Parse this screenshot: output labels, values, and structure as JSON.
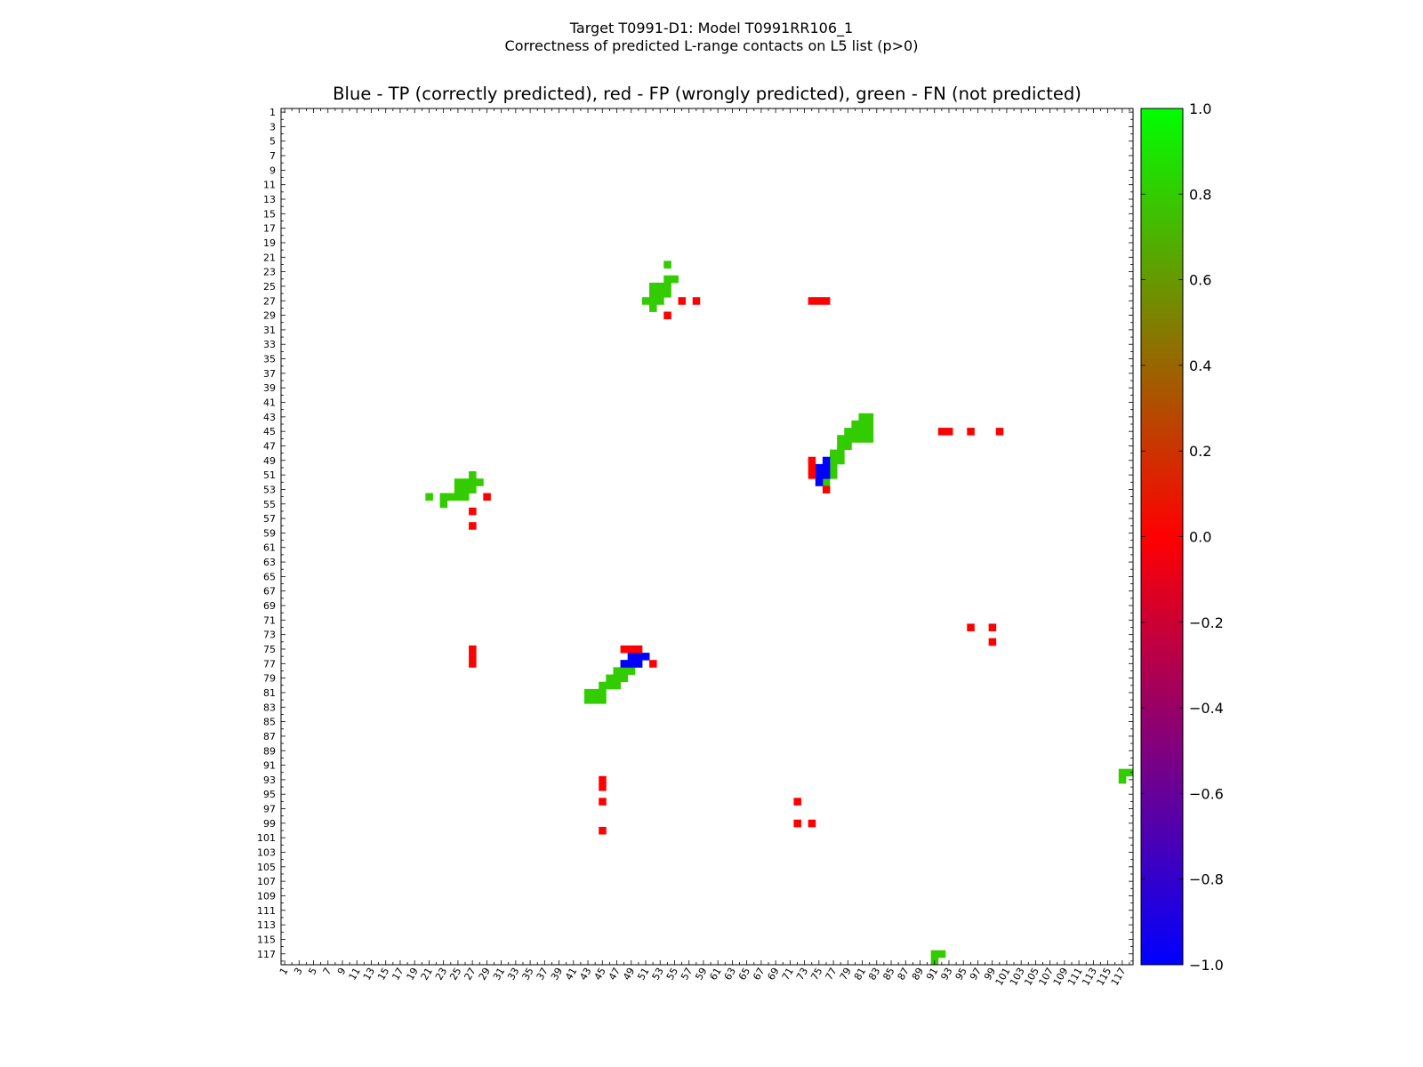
{
  "figure": {
    "title_line1": "Target T0991-D1: Model T0991RR106_1",
    "title_line2": "Correctness of predicted L-range contacts on L5 list (p>0)"
  },
  "chart_data": {
    "type": "heatmap",
    "title": "Blue - TP (correctly predicted), red - FP (wrongly predicted), green - FN (not predicted)",
    "xlabel": "",
    "ylabel": "",
    "xlim": [
      1,
      118
    ],
    "ylim": [
      1,
      118
    ],
    "x_tick_labels": [
      "1",
      "3",
      "5",
      "7",
      "9",
      "11",
      "13",
      "15",
      "17",
      "19",
      "21",
      "23",
      "25",
      "27",
      "29",
      "31",
      "33",
      "35",
      "37",
      "39",
      "41",
      "43",
      "45",
      "47",
      "49",
      "51",
      "53",
      "55",
      "57",
      "59",
      "61",
      "63",
      "65",
      "67",
      "69",
      "71",
      "73",
      "75",
      "77",
      "79",
      "81",
      "83",
      "85",
      "87",
      "89",
      "91",
      "93",
      "95",
      "97",
      "99",
      "101",
      "103",
      "105",
      "107",
      "109",
      "111",
      "113",
      "115",
      "117"
    ],
    "y_tick_labels": [
      "1",
      "3",
      "5",
      "7",
      "9",
      "11",
      "13",
      "15",
      "17",
      "19",
      "21",
      "23",
      "25",
      "27",
      "29",
      "31",
      "33",
      "35",
      "37",
      "39",
      "41",
      "43",
      "45",
      "47",
      "49",
      "51",
      "53",
      "55",
      "57",
      "59",
      "61",
      "63",
      "65",
      "67",
      "69",
      "71",
      "73",
      "75",
      "77",
      "79",
      "81",
      "83",
      "85",
      "87",
      "89",
      "91",
      "93",
      "95",
      "97",
      "99",
      "101",
      "103",
      "105",
      "107",
      "109",
      "111",
      "113",
      "115",
      "117"
    ],
    "colors": {
      "tp": "#0000ff",
      "fp": "#ff0000",
      "fn": "#33cc00"
    },
    "colorbar": {
      "min": -1.0,
      "max": 1.0,
      "tick_labels": [
        "1.0",
        "0.8",
        "0.6",
        "0.4",
        "0.2",
        "0.0",
        "−0.2",
        "−0.4",
        "−0.6",
        "−0.8",
        "−1.0"
      ],
      "stops": [
        "#0000ff",
        "#ff0000",
        "#00ff00"
      ]
    },
    "cells": {
      "fn": [
        [
          54,
          22
        ],
        [
          54,
          24
        ],
        [
          55,
          24
        ],
        [
          52,
          25
        ],
        [
          53,
          25
        ],
        [
          54,
          25
        ],
        [
          52,
          26
        ],
        [
          53,
          26
        ],
        [
          54,
          26
        ],
        [
          51,
          27
        ],
        [
          52,
          27
        ],
        [
          53,
          27
        ],
        [
          52,
          28
        ],
        [
          81,
          43
        ],
        [
          82,
          43
        ],
        [
          80,
          44
        ],
        [
          81,
          44
        ],
        [
          82,
          44
        ],
        [
          79,
          45
        ],
        [
          80,
          45
        ],
        [
          81,
          45
        ],
        [
          82,
          45
        ],
        [
          78,
          46
        ],
        [
          79,
          46
        ],
        [
          80,
          46
        ],
        [
          81,
          46
        ],
        [
          82,
          46
        ],
        [
          78,
          47
        ],
        [
          79,
          47
        ],
        [
          77,
          48
        ],
        [
          78,
          48
        ],
        [
          77,
          49
        ],
        [
          78,
          49
        ],
        [
          77,
          50
        ],
        [
          76,
          51
        ],
        [
          77,
          51
        ],
        [
          76,
          52
        ],
        [
          27,
          51
        ],
        [
          25,
          52
        ],
        [
          26,
          52
        ],
        [
          27,
          52
        ],
        [
          28,
          52
        ],
        [
          25,
          53
        ],
        [
          26,
          53
        ],
        [
          27,
          53
        ],
        [
          21,
          54
        ],
        [
          23,
          54
        ],
        [
          24,
          54
        ],
        [
          25,
          54
        ],
        [
          26,
          54
        ],
        [
          23,
          55
        ],
        [
          91,
          117
        ],
        [
          92,
          117
        ],
        [
          91,
          118
        ],
        [
          50,
          77
        ],
        [
          49,
          77
        ],
        [
          48,
          77
        ],
        [
          47,
          78
        ],
        [
          48,
          78
        ],
        [
          49,
          78
        ],
        [
          46,
          79
        ],
        [
          47,
          79
        ],
        [
          48,
          79
        ],
        [
          45,
          80
        ],
        [
          46,
          80
        ],
        [
          47,
          80
        ],
        [
          45,
          81
        ],
        [
          44,
          81
        ],
        [
          43,
          81
        ],
        [
          43,
          82
        ],
        [
          44,
          82
        ],
        [
          45,
          82
        ],
        [
          117,
          92
        ],
        [
          118,
          92
        ],
        [
          117,
          93
        ]
      ],
      "tp": [
        [
          76,
          49
        ],
        [
          75,
          50
        ],
        [
          76,
          50
        ],
        [
          75,
          51
        ],
        [
          76,
          51
        ],
        [
          75,
          52
        ],
        [
          49,
          76
        ],
        [
          50,
          76
        ],
        [
          51,
          76
        ],
        [
          48,
          77
        ],
        [
          49,
          77
        ],
        [
          50,
          77
        ]
      ],
      "fp": [
        [
          74,
          27
        ],
        [
          75,
          27
        ],
        [
          76,
          27
        ],
        [
          56,
          27
        ],
        [
          58,
          27
        ],
        [
          54,
          29
        ],
        [
          92,
          45
        ],
        [
          93,
          45
        ],
        [
          96,
          45
        ],
        [
          100,
          45
        ],
        [
          74,
          49
        ],
        [
          74,
          50
        ],
        [
          74,
          51
        ],
        [
          76,
          53
        ],
        [
          29,
          54
        ],
        [
          27,
          56
        ],
        [
          27,
          58
        ],
        [
          48,
          75
        ],
        [
          49,
          75
        ],
        [
          50,
          75
        ],
        [
          52,
          77
        ],
        [
          27,
          75
        ],
        [
          27,
          76
        ],
        [
          27,
          77
        ],
        [
          96,
          72
        ],
        [
          99,
          72
        ],
        [
          99,
          74
        ],
        [
          45,
          93
        ],
        [
          45,
          94
        ],
        [
          45,
          96
        ],
        [
          45,
          100
        ],
        [
          72,
          96
        ],
        [
          72,
          99
        ],
        [
          74,
          99
        ]
      ]
    }
  }
}
